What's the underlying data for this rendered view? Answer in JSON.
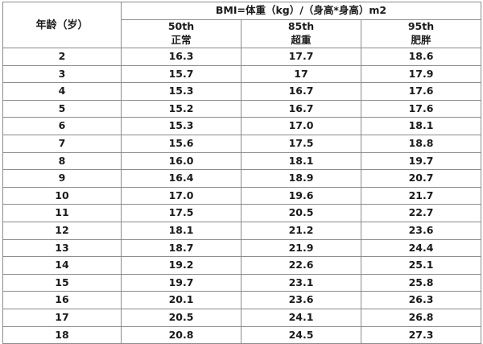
{
  "table": {
    "age_header": "年龄（岁）",
    "bmi_header": "BMI=体重（kg）/（身高*身高）m2",
    "percentiles": [
      {
        "pct": "50th",
        "label": "正常"
      },
      {
        "pct": "85th",
        "label": "超重"
      },
      {
        "pct": "95th",
        "label": "肥胖"
      }
    ],
    "rows": [
      {
        "age": "2",
        "p50": "16.3",
        "p85": "17.7",
        "p95": "18.6"
      },
      {
        "age": "3",
        "p50": "15.7",
        "p85": "17",
        "p95": "17.9"
      },
      {
        "age": "4",
        "p50": "15.3",
        "p85": "16.7",
        "p95": "17.6"
      },
      {
        "age": "5",
        "p50": "15.2",
        "p85": "16.7",
        "p95": "17.6"
      },
      {
        "age": "6",
        "p50": "15.3",
        "p85": "17.0",
        "p95": "18.1"
      },
      {
        "age": "7",
        "p50": "15.6",
        "p85": "17.5",
        "p95": "18.8"
      },
      {
        "age": "8",
        "p50": "16.0",
        "p85": "18.1",
        "p95": "19.7"
      },
      {
        "age": "9",
        "p50": "16.4",
        "p85": "18.9",
        "p95": "20.7"
      },
      {
        "age": "10",
        "p50": "17.0",
        "p85": "19.6",
        "p95": "21.7"
      },
      {
        "age": "11",
        "p50": "17.5",
        "p85": "20.5",
        "p95": "22.7"
      },
      {
        "age": "12",
        "p50": "18.1",
        "p85": "21.2",
        "p95": "23.6"
      },
      {
        "age": "13",
        "p50": "18.7",
        "p85": "21.9",
        "p95": "24.4"
      },
      {
        "age": "14",
        "p50": "19.2",
        "p85": "22.6",
        "p95": "25.1"
      },
      {
        "age": "15",
        "p50": "19.7",
        "p85": "23.1",
        "p95": "25.8"
      },
      {
        "age": "16",
        "p50": "20.1",
        "p85": "23.6",
        "p95": "26.3"
      },
      {
        "age": "17",
        "p50": "20.5",
        "p85": "24.1",
        "p95": "26.8"
      },
      {
        "age": "18",
        "p50": "20.8",
        "p85": "24.5",
        "p95": "27.3"
      }
    ]
  }
}
